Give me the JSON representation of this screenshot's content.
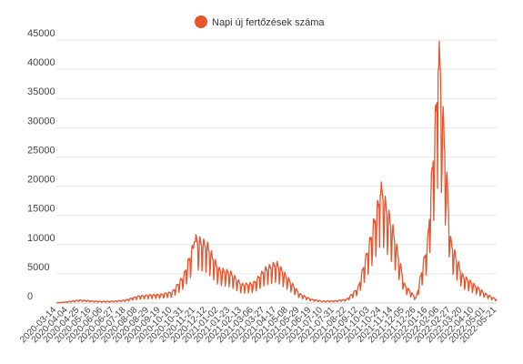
{
  "chart_data": {
    "type": "line",
    "title": "",
    "xlabel": "",
    "ylabel": "",
    "ylim": [
      0,
      45000
    ],
    "y_ticks": [
      0,
      5000,
      10000,
      15000,
      20000,
      25000,
      30000,
      35000,
      40000,
      45000
    ],
    "grid": true,
    "legend_position": "top-center",
    "x_tick_labels": [
      "2020-03-14",
      "2020-04-04",
      "2020-04-25",
      "2020-05-16",
      "2020-06-06",
      "2020-06-27",
      "2020-07-18",
      "2020-08-08",
      "2020-08-29",
      "2020-09-19",
      "2020-10-10",
      "2020-10-31",
      "2020-11-21",
      "2020-12-12",
      "2021-01-02",
      "2021-01-23",
      "2021-02-13",
      "2021-03-06",
      "2021-03-27",
      "2021-04-17",
      "2021-05-08",
      "2021-05-29",
      "2021-06-19",
      "2021-07-10",
      "2021-07-31",
      "2021-08-22",
      "2021-09-12",
      "2021-10-03",
      "2021-10-24",
      "2021-11-14",
      "2021-12-05",
      "2021-12-26",
      "2022-01-16",
      "2022-02-06",
      "2022-02-27",
      "2022-03-20",
      "2022-04-10",
      "2022-05-01",
      "2022-05-21"
    ],
    "series": [
      {
        "name": "Napi új fertőzések száma",
        "color": "#e8552d",
        "points": [
          [
            "2020-03-14",
            50
          ],
          [
            "2020-04-04",
            200
          ],
          [
            "2020-04-25",
            500
          ],
          [
            "2020-05-16",
            350
          ],
          [
            "2020-06-06",
            250
          ],
          [
            "2020-06-27",
            300
          ],
          [
            "2020-07-18",
            500
          ],
          [
            "2020-08-08",
            1100
          ],
          [
            "2020-08-29",
            1300
          ],
          [
            "2020-09-19",
            1400
          ],
          [
            "2020-10-10",
            1800
          ],
          [
            "2020-10-31",
            4500
          ],
          [
            "2020-11-21",
            10500
          ],
          [
            "2020-12-12",
            9500
          ],
          [
            "2021-01-02",
            5500
          ],
          [
            "2021-01-23",
            5000
          ],
          [
            "2021-02-13",
            3000
          ],
          [
            "2021-03-06",
            3200
          ],
          [
            "2021-03-27",
            5500
          ],
          [
            "2021-04-17",
            6500
          ],
          [
            "2021-05-08",
            4000
          ],
          [
            "2021-05-29",
            1500
          ],
          [
            "2021-06-19",
            600
          ],
          [
            "2021-07-10",
            300
          ],
          [
            "2021-07-31",
            350
          ],
          [
            "2021-08-22",
            600
          ],
          [
            "2021-09-12",
            2500
          ],
          [
            "2021-10-03",
            10000
          ],
          [
            "2021-10-24",
            18500
          ],
          [
            "2021-11-14",
            12000
          ],
          [
            "2021-12-05",
            3000
          ],
          [
            "2021-12-26",
            800
          ],
          [
            "2022-01-16",
            10000
          ],
          [
            "2022-02-06",
            40000
          ],
          [
            "2022-02-27",
            10000
          ],
          [
            "2022-03-20",
            4500
          ],
          [
            "2022-04-10",
            3000
          ],
          [
            "2022-05-01",
            1500
          ],
          [
            "2022-05-21",
            600
          ]
        ]
      }
    ]
  }
}
